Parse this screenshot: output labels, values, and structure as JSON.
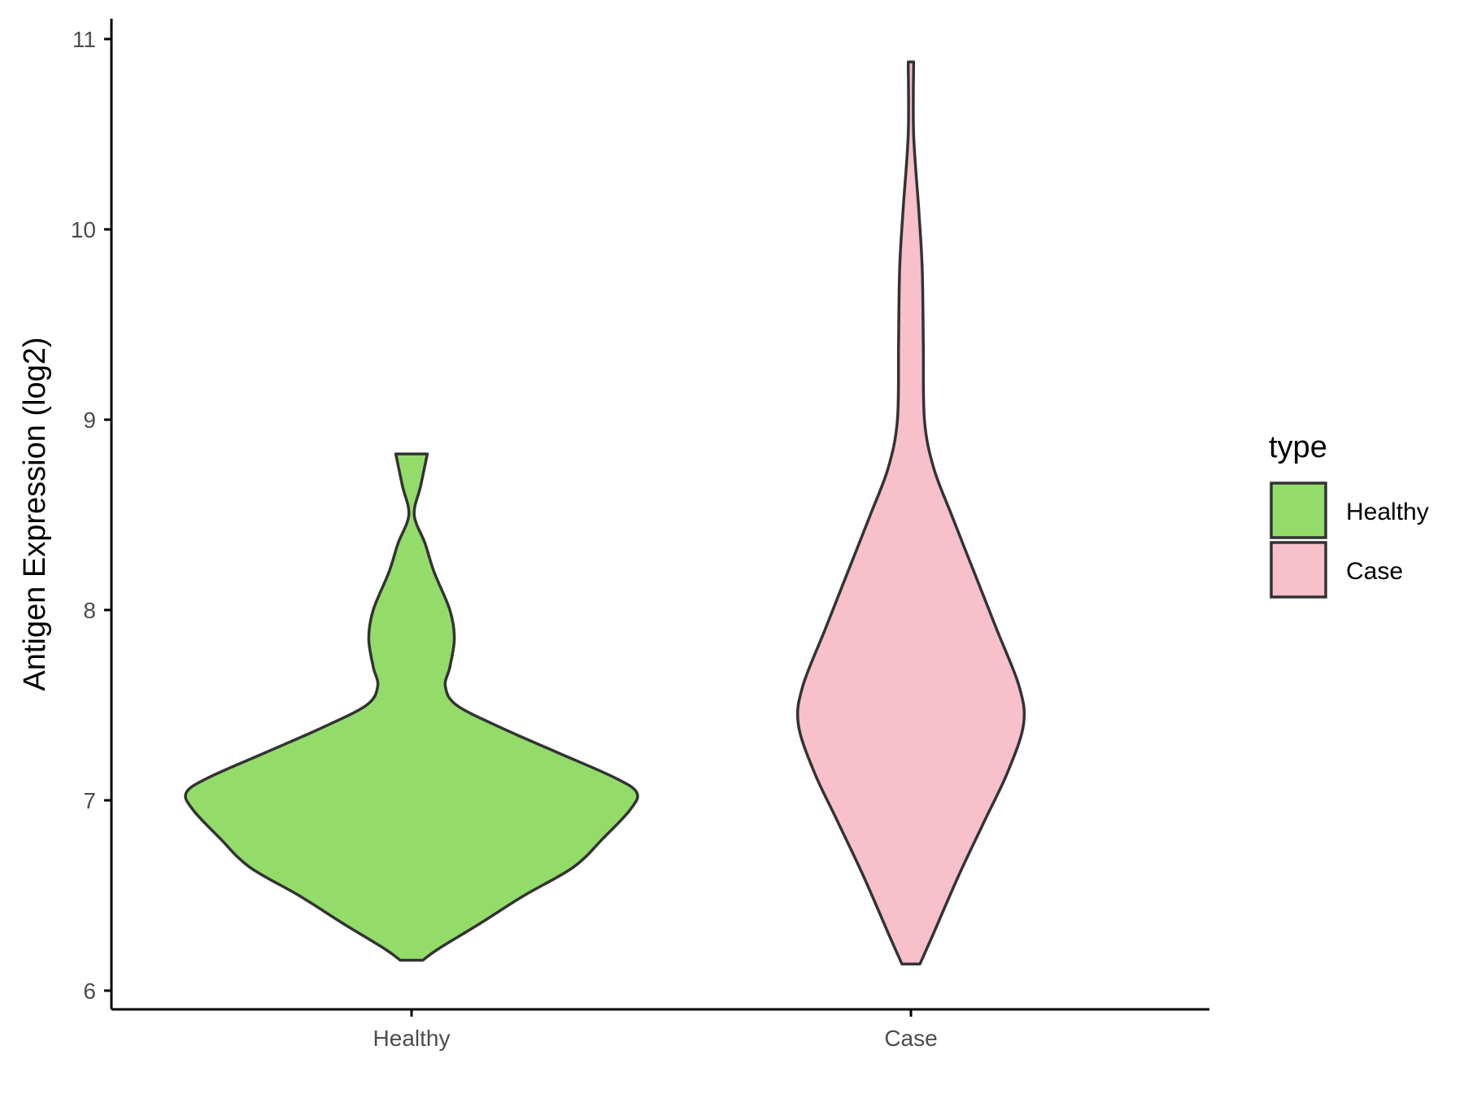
{
  "chart_data": {
    "type": "violin",
    "title": "",
    "xlabel": "",
    "ylabel": "Antigen Expression (log2)",
    "ylim": [
      5.9,
      11.1
    ],
    "yticks": [
      6,
      7,
      8,
      9,
      10,
      11
    ],
    "categories": [
      "Healthy",
      "Case"
    ],
    "legend": {
      "title": "type",
      "position": "right",
      "entries": [
        "Healthy",
        "Case"
      ]
    },
    "series": [
      {
        "name": "Healthy",
        "color": "#93DC6A",
        "min": 6.16,
        "max": 8.82,
        "density_profile": [
          {
            "y": 6.16,
            "w": 0.05
          },
          {
            "y": 6.22,
            "w": 0.12
          },
          {
            "y": 6.35,
            "w": 0.3
          },
          {
            "y": 6.5,
            "w": 0.5
          },
          {
            "y": 6.65,
            "w": 0.72
          },
          {
            "y": 6.8,
            "w": 0.85
          },
          {
            "y": 6.95,
            "w": 0.97
          },
          {
            "y": 7.04,
            "w": 1.0
          },
          {
            "y": 7.12,
            "w": 0.9
          },
          {
            "y": 7.25,
            "w": 0.65
          },
          {
            "y": 7.38,
            "w": 0.4
          },
          {
            "y": 7.5,
            "w": 0.2
          },
          {
            "y": 7.6,
            "w": 0.15
          },
          {
            "y": 7.7,
            "w": 0.17
          },
          {
            "y": 7.85,
            "w": 0.19
          },
          {
            "y": 8.0,
            "w": 0.17
          },
          {
            "y": 8.2,
            "w": 0.1
          },
          {
            "y": 8.35,
            "w": 0.06
          },
          {
            "y": 8.5,
            "w": 0.0
          },
          {
            "y": 8.65,
            "w": 0.04
          },
          {
            "y": 8.82,
            "w": 0.07
          }
        ]
      },
      {
        "name": "Case",
        "color": "#F7C0CB",
        "min": 6.14,
        "max": 10.88,
        "density_profile": [
          {
            "y": 6.14,
            "w": 0.04
          },
          {
            "y": 6.3,
            "w": 0.1
          },
          {
            "y": 6.6,
            "w": 0.21
          },
          {
            "y": 6.9,
            "w": 0.33
          },
          {
            "y": 7.15,
            "w": 0.43
          },
          {
            "y": 7.4,
            "w": 0.5
          },
          {
            "y": 7.6,
            "w": 0.48
          },
          {
            "y": 7.9,
            "w": 0.38
          },
          {
            "y": 8.2,
            "w": 0.28
          },
          {
            "y": 8.5,
            "w": 0.18
          },
          {
            "y": 8.75,
            "w": 0.1
          },
          {
            "y": 9.0,
            "w": 0.06
          },
          {
            "y": 9.4,
            "w": 0.055
          },
          {
            "y": 9.8,
            "w": 0.05
          },
          {
            "y": 10.1,
            "w": 0.035
          },
          {
            "y": 10.5,
            "w": 0.01
          },
          {
            "y": 10.88,
            "w": 0.01
          }
        ]
      }
    ]
  }
}
